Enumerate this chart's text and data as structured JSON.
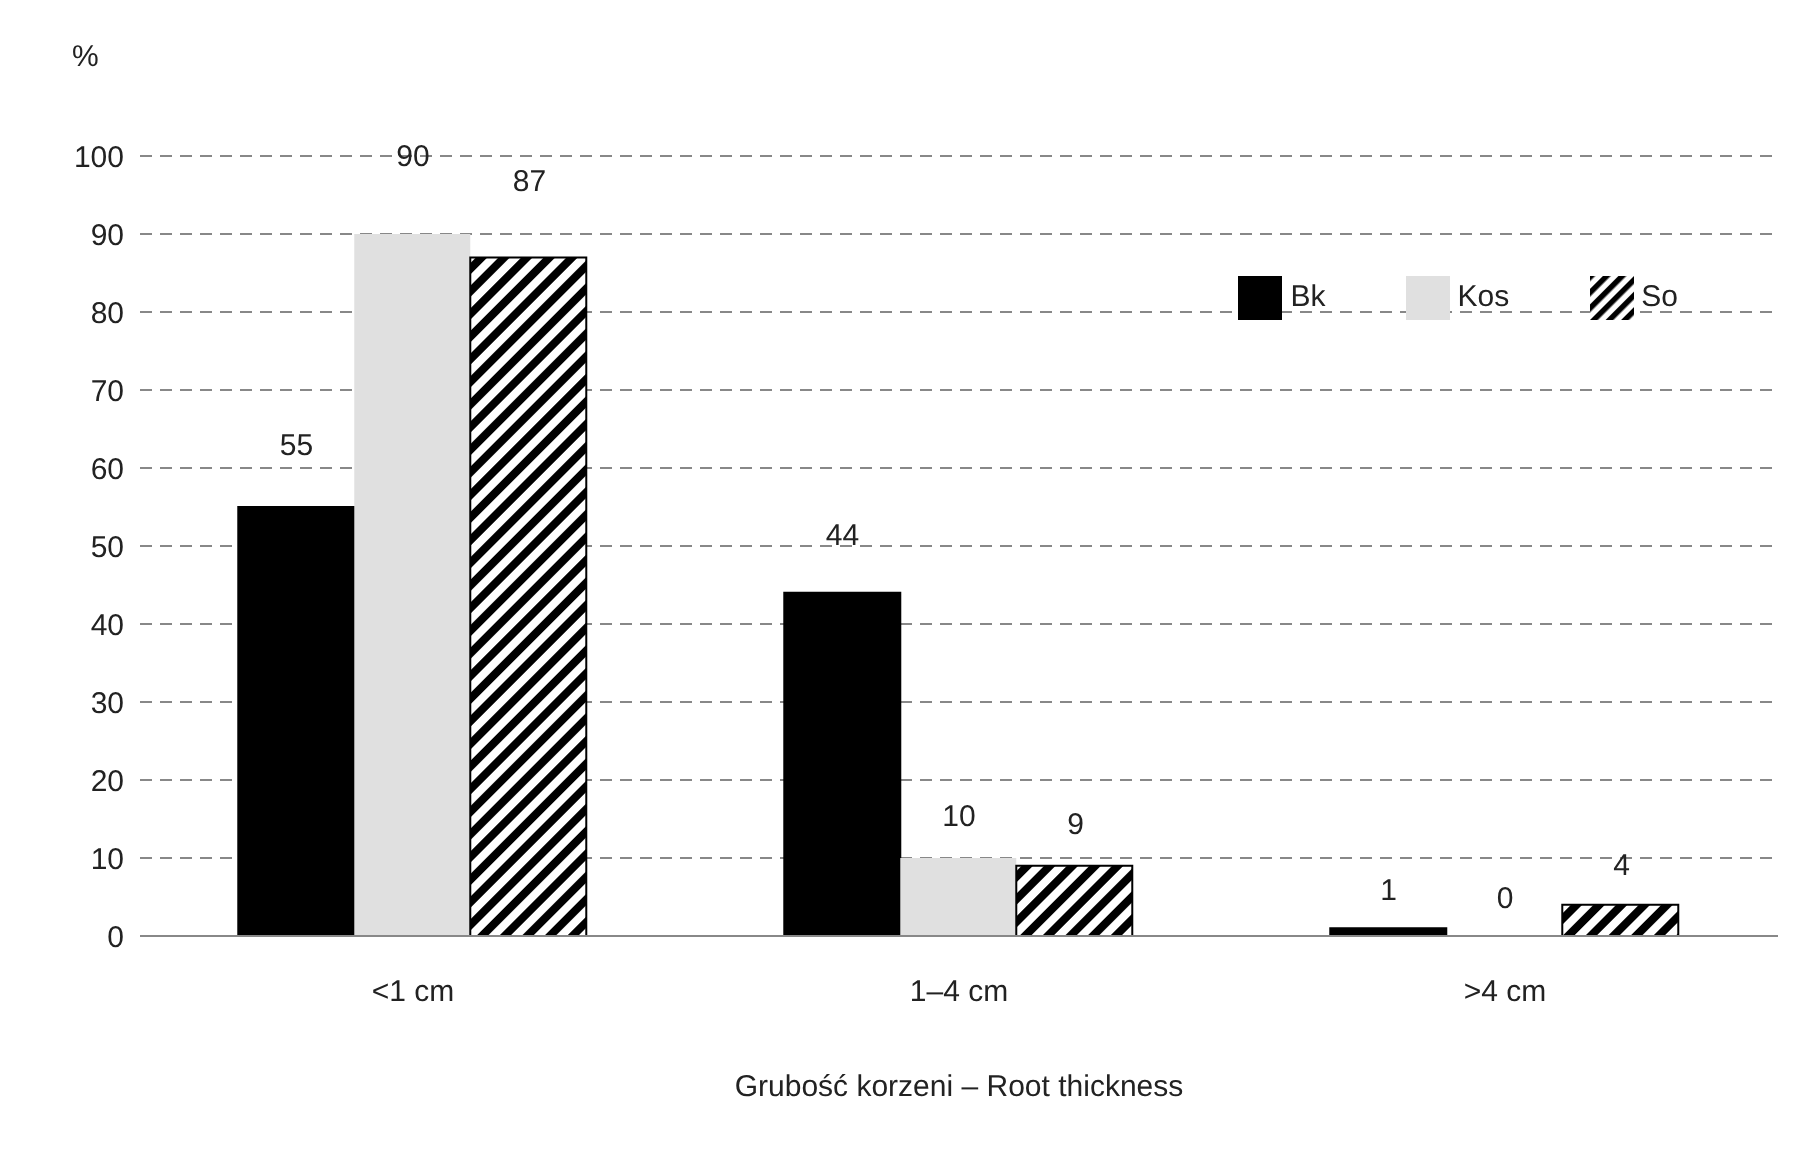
{
  "chart_data": {
    "type": "bar",
    "ylabel": "%",
    "xlabel": "Grubość korzeni – Root thickness",
    "categories": [
      "<1 cm",
      "1–4 cm",
      ">4 cm"
    ],
    "series": [
      {
        "name": "Bk",
        "color": "#000000",
        "values": [
          55,
          44,
          1
        ]
      },
      {
        "name": "Kos",
        "color": "#e0e0e0",
        "values": [
          90,
          10,
          0
        ]
      },
      {
        "name": "So",
        "color": "#000000",
        "values": [
          87,
          9,
          4
        ]
      }
    ],
    "ylim": [
      0,
      100
    ],
    "yticks": [
      0,
      10,
      20,
      30,
      40,
      50,
      60,
      70,
      80,
      90,
      100
    ],
    "grid": "y",
    "legend": "top right",
    "data_labels": true
  }
}
